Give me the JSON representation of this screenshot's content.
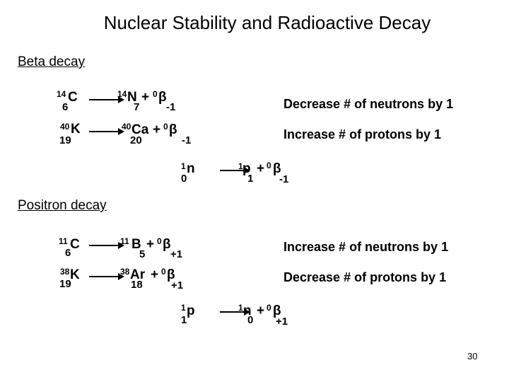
{
  "title": "Nuclear Stability and Radioactive Decay",
  "beta": {
    "heading": "Beta decay",
    "row1": {
      "r_mass": "14",
      "r_sym": "C",
      "r_z": "6",
      "p_mass": "14",
      "p_sym": "N",
      "p_z": "7",
      "plus": "+",
      "b_mass": "0",
      "b_sym": "β",
      "b_z": "-1",
      "note": "Decrease # of neutrons by 1"
    },
    "row2": {
      "r_mass": "40",
      "r_sym": "K",
      "r_z": "19",
      "p_mass": "40",
      "p_sym": "Ca",
      "p_z": "20",
      "plus": "+",
      "b_mass": "0",
      "b_sym": "β",
      "b_z": "-1",
      "note": "Increase # of protons by 1"
    },
    "row3": {
      "r_mass": "1",
      "r_sym": "n",
      "r_z": "0",
      "p_mass": "1",
      "p_sym": "p",
      "p_z": "1",
      "plus": "+",
      "b_mass": "0",
      "b_sym": "β",
      "b_z": "-1"
    }
  },
  "positron": {
    "heading": "Positron decay",
    "row1": {
      "r_mass": "11",
      "r_sym": "C",
      "r_z": "6",
      "p_mass": "11",
      "p_sym": "B",
      "p_z": "5",
      "plus": "+",
      "b_mass": "0",
      "b_sym": "β",
      "b_z": "+1",
      "note": "Increase # of neutrons by 1"
    },
    "row2": {
      "r_mass": "38",
      "r_sym": "K",
      "r_z": "19",
      "p_mass": "38",
      "p_sym": "Ar",
      "p_z": "18",
      "plus": "+",
      "b_mass": "0",
      "b_sym": "β",
      "b_z": "+1",
      "note": "Decrease # of protons by 1"
    },
    "row3": {
      "r_mass": "1",
      "r_sym": "p",
      "r_z": "1",
      "p_mass": "1",
      "p_sym": "n",
      "p_z": "0",
      "plus": "+",
      "b_mass": "0",
      "b_sym": "β",
      "b_z": "+1"
    }
  },
  "page_number": "30"
}
